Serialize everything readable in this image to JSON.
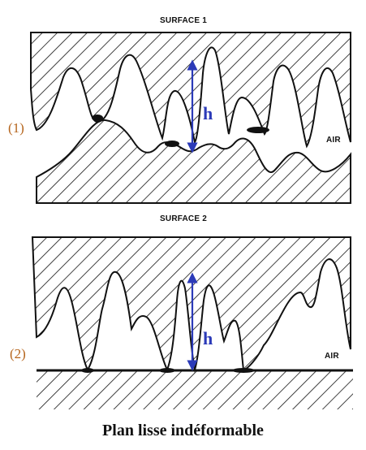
{
  "diagram": {
    "surface1_label": "SURFACE 1",
    "surface2_label": "SURFACE 2",
    "panel1_number": "(1)",
    "panel2_number": "(2)",
    "air_label_1": "AIR",
    "air_label_2": "AIR",
    "height_label_1": "h",
    "height_label_2": "h",
    "caption": "Plan lisse indéformable"
  },
  "colors": {
    "arrow": "#2b3ab8",
    "panel_number": "#b5651d",
    "ink": "#111111"
  }
}
